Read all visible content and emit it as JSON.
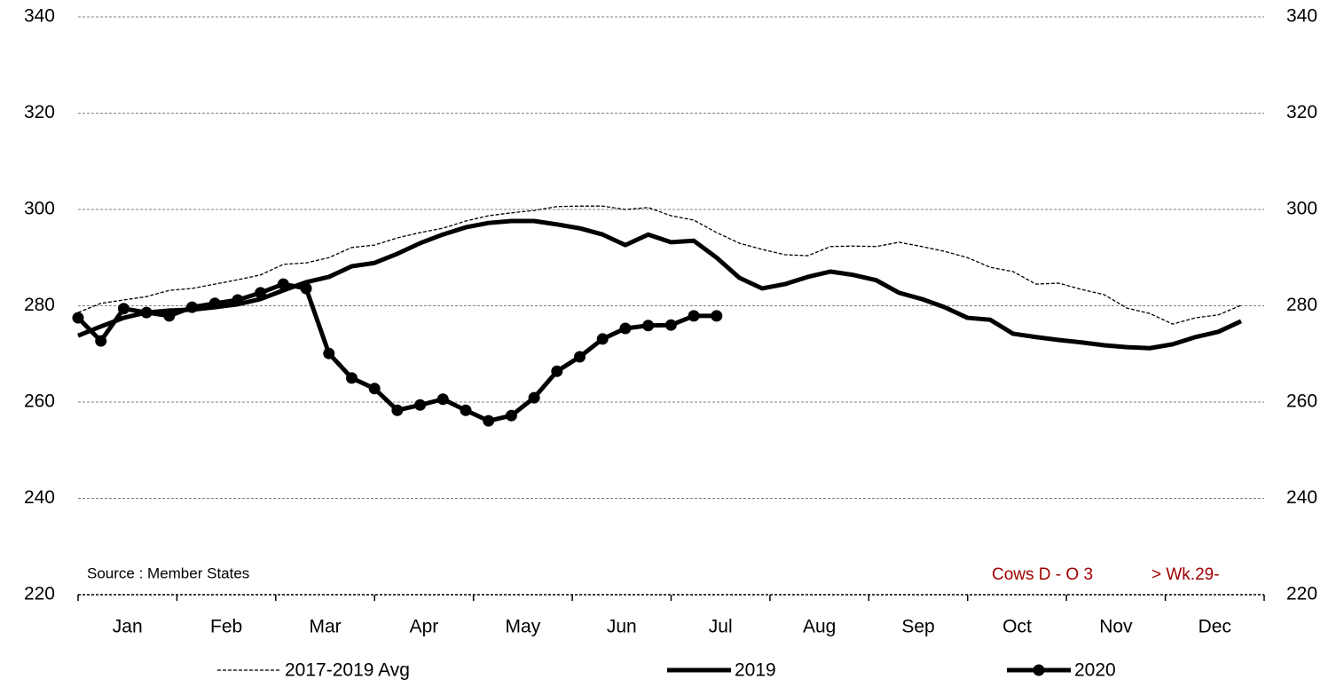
{
  "chart_data": {
    "type": "line",
    "months": [
      "Jan",
      "Feb",
      "Mar",
      "Apr",
      "May",
      "Jun",
      "Jul",
      "Aug",
      "Sep",
      "Oct",
      "Nov",
      "Dec"
    ],
    "series": [
      {
        "name": "2017-2019 Avg",
        "color": "#000000",
        "line_style": "dashed",
        "marker": "none",
        "values": [
          278.6,
          280.5,
          281.2,
          281.9,
          283.2,
          283.6,
          284.5,
          285.4,
          286.4,
          288.6,
          288.9,
          290.0,
          292.1,
          292.6,
          294.1,
          295.2,
          296.1,
          297.6,
          298.7,
          299.3,
          299.8,
          300.6,
          300.7,
          300.7,
          300.0,
          300.4,
          298.7,
          297.8,
          295.2,
          293.0,
          291.7,
          290.6,
          290.4,
          292.3,
          292.4,
          292.3,
          293.2,
          292.3,
          291.3,
          290.0,
          288.0,
          287.1,
          284.5,
          284.7,
          283.4,
          282.3,
          279.5,
          278.4,
          276.2,
          277.5,
          278.1,
          280.1
        ]
      },
      {
        "name": "2019",
        "color": "#000000",
        "line_style": "solid",
        "marker": "none",
        "values": [
          273.8,
          275.7,
          277.5,
          278.6,
          279.0,
          279.2,
          279.7,
          280.3,
          281.4,
          283.2,
          284.9,
          286.0,
          288.2,
          288.9,
          290.8,
          293.0,
          294.8,
          296.3,
          297.2,
          297.6,
          297.6,
          296.9,
          296.1,
          294.8,
          292.6,
          294.8,
          293.2,
          293.5,
          290.0,
          285.8,
          283.6,
          284.5,
          286.0,
          287.1,
          286.4,
          285.3,
          282.7,
          281.4,
          279.7,
          277.5,
          277.1,
          274.2,
          273.5,
          272.9,
          272.4,
          271.8,
          271.4,
          271.2,
          272.0,
          273.5,
          274.6,
          276.8
        ]
      },
      {
        "name": "2020",
        "color": "#000000",
        "line_style": "solid",
        "marker": "circle",
        "values": [
          277.5,
          272.7,
          279.4,
          278.6,
          277.9,
          279.7,
          280.5,
          281.2,
          282.7,
          284.5,
          283.6,
          270.1,
          265.0,
          262.8,
          258.3,
          259.4,
          260.6,
          258.3,
          256.1,
          257.2,
          260.9,
          266.4,
          269.4,
          273.1,
          275.3,
          275.9,
          276.0,
          277.9,
          277.9,
          null,
          null,
          null,
          null,
          null,
          null,
          null,
          null,
          null,
          null,
          null,
          null,
          null,
          null,
          null,
          null,
          null,
          null,
          null,
          null,
          null,
          null,
          null
        ]
      }
    ],
    "ylim": [
      220,
      340
    ],
    "yticks": [
      220,
      240,
      260,
      280,
      300,
      320,
      340
    ],
    "y2lim": [
      220,
      340
    ],
    "y2ticks": [
      220,
      240,
      260,
      280,
      300,
      320,
      340
    ],
    "grid": true,
    "source": "Source : Member States",
    "annotation": "Cows D - O 3",
    "annotation2": "> Wk.29-",
    "annotation_color": "#a00000",
    "legend": "bottom"
  }
}
